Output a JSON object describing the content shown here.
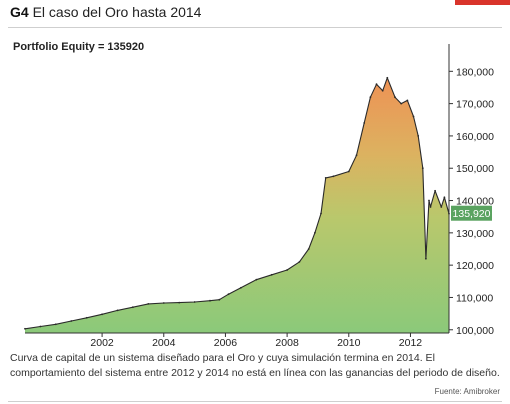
{
  "figure": {
    "number": "G4",
    "heading": "El caso del Oro hasta 2014",
    "caption": "Curva de capital de un sistema diseñado para el Oro y cuya simulación termina en 2014. El comportamiento del sistema entre 2012 y 2014 no está en línea con las ganancias del periodo de diseño.",
    "source": "Fuente: Amibroker"
  },
  "colors": {
    "accent_red": "#d9342b",
    "fill_bottom": "#8bc97a",
    "fill_top": "#ee9255",
    "equity_line": "#2a2a2a",
    "last_value_badge": "#5aa360"
  },
  "chart_data": {
    "type": "area",
    "title": "Portfolio Equity = 135920",
    "xlabel": "",
    "ylabel": "",
    "x_ticks": [
      "2002",
      "2004",
      "2006",
      "2008",
      "2010",
      "2012"
    ],
    "y_ticks": [
      "100,000",
      "110,000",
      "120,000",
      "130,000",
      "140,000",
      "150,000",
      "160,000",
      "170,000",
      "180,000"
    ],
    "last_value_label": "135,920",
    "xlim": [
      2000.0,
      2013.75
    ],
    "ylim": [
      99000,
      183500
    ],
    "grid": false,
    "legend": "none",
    "y_axis_position": "right",
    "series": [
      {
        "x": [
          2000.0,
          2000.5,
          2001.0,
          2001.5,
          2002.0,
          2002.5,
          2003.0,
          2003.5,
          2004.0,
          2004.5,
          2005.0,
          2005.5,
          2006.0,
          2006.3,
          2006.6,
          2007.0,
          2007.5,
          2008.0,
          2008.5,
          2008.9,
          2009.2,
          2009.4,
          2009.6,
          2009.75,
          2010.0,
          2010.5,
          2010.75,
          2011.0,
          2011.2,
          2011.4,
          2011.6,
          2011.75,
          2012.0,
          2012.2,
          2012.4,
          2012.6,
          2012.75,
          2012.9,
          2013.0,
          2013.1,
          2013.15,
          2013.3,
          2013.5,
          2013.6,
          2013.75
        ],
        "y": [
          100300,
          101000,
          101700,
          102700,
          103700,
          104800,
          106000,
          107000,
          108000,
          108300,
          108400,
          108600,
          109000,
          109300,
          111000,
          113000,
          115500,
          117000,
          118500,
          121000,
          125000,
          130000,
          136000,
          147000,
          147500,
          149000,
          154000,
          164000,
          172000,
          176000,
          174000,
          178000,
          172000,
          170000,
          171000,
          166000,
          160000,
          150000,
          122000,
          140000,
          138000,
          143000,
          138000,
          141000,
          135920
        ]
      }
    ]
  }
}
